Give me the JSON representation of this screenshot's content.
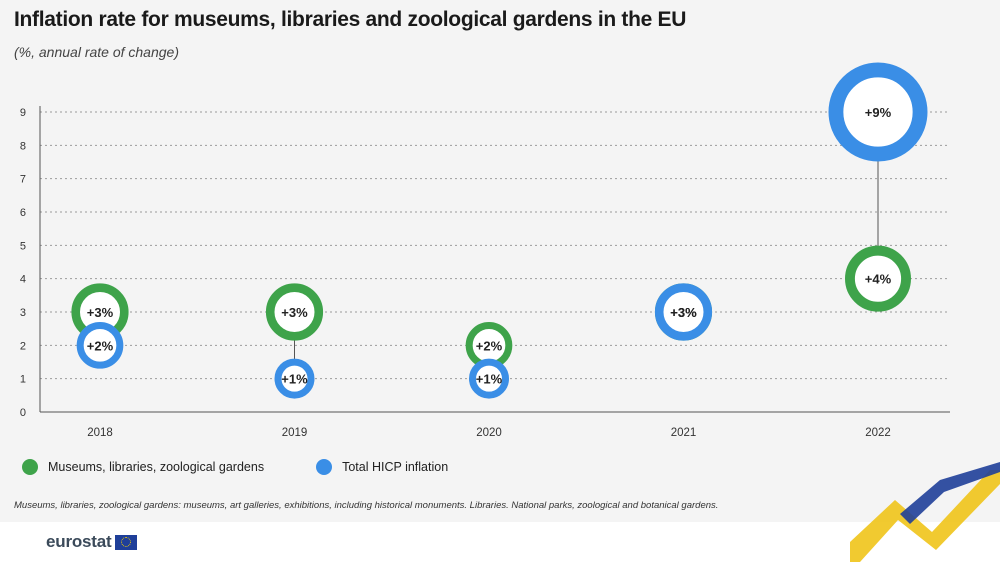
{
  "title": "Inflation rate for museums, libraries and zoological gardens in the EU",
  "subtitle": "(%, annual rate of change)",
  "legend": {
    "museums": "Museums, libraries, zoological gardens",
    "hicp": "Total HICP inflation"
  },
  "footnote": "Museums, libraries, zoological gardens: museums, art galleries, exhibitions, including historical monuments. Libraries. National parks, zoological and botanical gardens.",
  "logo": "eurostat",
  "colors": {
    "museums": "#3ea34a",
    "hicp": "#3a8ee6",
    "grid": "#9a9a9a",
    "axis": "#555555"
  },
  "chart_data": {
    "type": "scatter",
    "categories": [
      "2018",
      "2019",
      "2020",
      "2021",
      "2022"
    ],
    "ylim": [
      0,
      9
    ],
    "yticks": [
      "0",
      "1",
      "2",
      "3",
      "4",
      "5",
      "6",
      "7",
      "8",
      "9"
    ],
    "grid": true,
    "series": [
      {
        "name": "Museums, libraries, zoological gardens",
        "values": [
          3,
          3,
          2,
          3,
          4
        ],
        "labels": [
          "+3%",
          "+3%",
          "+2%",
          "+3%",
          "+4%"
        ]
      },
      {
        "name": "Total HICP inflation",
        "values": [
          2,
          1,
          1,
          3,
          9
        ],
        "labels": [
          "+2%",
          "+1%",
          "+1%",
          "+3%",
          "+9%"
        ]
      }
    ]
  }
}
